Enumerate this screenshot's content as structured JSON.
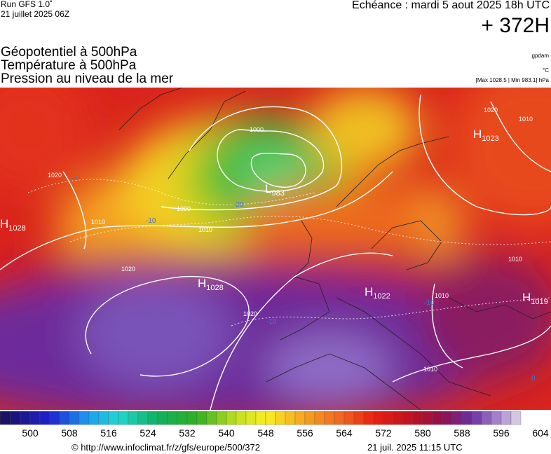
{
  "header": {
    "run": "Run GFS 1.0˚",
    "run_date": "21 juillet 2025 06Z",
    "valid": "Echéance : mardi 5 aout 2025 18h UTC",
    "lead": "+ 372H",
    "fields": [
      "Géopotentiel à 500hPa",
      "Température à 500hPa",
      "Pression au niveau de la mer"
    ],
    "units": [
      "gpdam",
      "°C",
      "[Max 1028.5 | Min 983.1] hPa"
    ]
  },
  "map": {
    "centers": [
      {
        "symbol": "H",
        "value": 1023
      },
      {
        "symbol": "H",
        "value": 1028
      },
      {
        "symbol": "L",
        "value": 983
      },
      {
        "symbol": "H",
        "value": 1028
      },
      {
        "symbol": "H",
        "value": 1022
      },
      {
        "symbol": "H",
        "value": 1019
      }
    ],
    "isobar_labels": [
      1000,
      1000,
      1010,
      1020,
      1020,
      1010,
      1010,
      1010,
      1020,
      1010,
      1020,
      1010
    ],
    "temperature_labels": [
      -20,
      -10,
      -20,
      -10,
      -10,
      0
    ]
  },
  "colorbar": {
    "ticks": [
      500,
      508,
      516,
      524,
      532,
      540,
      548,
      556,
      564,
      572,
      580,
      588,
      596,
      604
    ]
  },
  "footer": {
    "url": "© http://www.infoclimat.fr/z/gfs/europe/500/372",
    "generated": "21 juil. 2025 11:15 UTC"
  }
}
